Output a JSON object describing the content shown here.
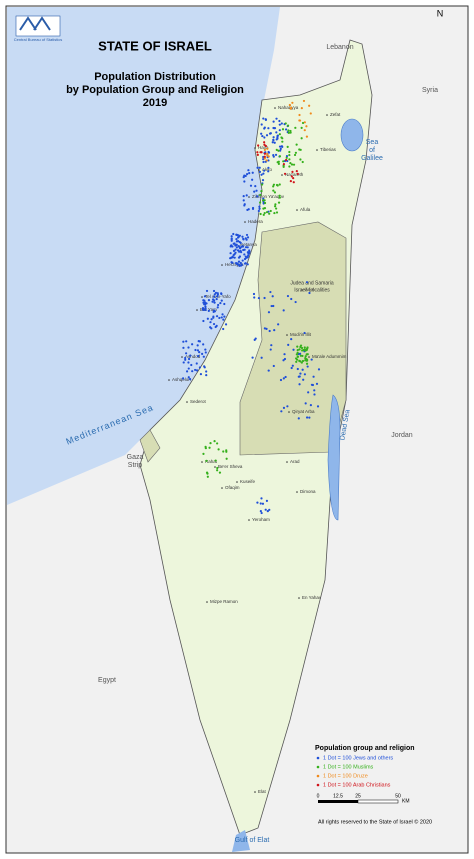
{
  "header": {
    "logo_text": "Central Bureau of Statistics",
    "title": "STATE OF ISRAEL",
    "subtitle_lines": [
      "Population Distribution",
      "by Population Group and Religion",
      "2019"
    ]
  },
  "north": "N",
  "regions": {
    "lebanon": "Lebanon",
    "syria": "Syria",
    "sea_of_galilee": [
      "Sea",
      "of",
      "Galilee"
    ],
    "mediterranean": "Mediterranean Sea",
    "jordan": "Jordan",
    "dead_sea": "Dead Sea",
    "gaza": [
      "Gaza",
      "Strip"
    ],
    "egypt": "Egypt",
    "gulf": "Gulf of Elat",
    "judea_samaria": [
      "Judea and Samaria",
      "Israeli Localities"
    ]
  },
  "places": [
    "Nahariyya",
    "Haifa",
    "Akko",
    "Zikhron Ya'aqov",
    "Hadera",
    "Netanya",
    "Herzliyya",
    "Tel Aviv-Yafo",
    "Bat Yam",
    "Ashdod",
    "Ashqelon",
    "Sederot",
    "Rahat",
    "Be'er Sheva",
    "Arad",
    "Dimona",
    "Yeroham",
    "Mizpe Ramon",
    "En Yahav",
    "Elat",
    "Ma'ale Adummim",
    "Qiryat Arba",
    "Ariel",
    "Nazareth",
    "Tiberias",
    "Zefat",
    "Afula",
    "Modi'in Illit",
    "Kuseife",
    "Ofaqim"
  ],
  "legend": {
    "title": "Population group and religion",
    "items": [
      {
        "label": "1 Dot = 100 Jews and others",
        "color": "#1f4fd8"
      },
      {
        "label": "1 Dot = 100 Muslims",
        "color": "#35b01c"
      },
      {
        "label": "1 Dot = 100 Druze",
        "color": "#f08a1c"
      },
      {
        "label": "1 Dot = 100 Arab Christians",
        "color": "#d0131a"
      }
    ]
  },
  "scale": {
    "ticks": [
      "0",
      "12.5",
      "25",
      "50"
    ],
    "unit": "KM"
  },
  "copyright": "All rights reserved to the State of Israel © 2020"
}
